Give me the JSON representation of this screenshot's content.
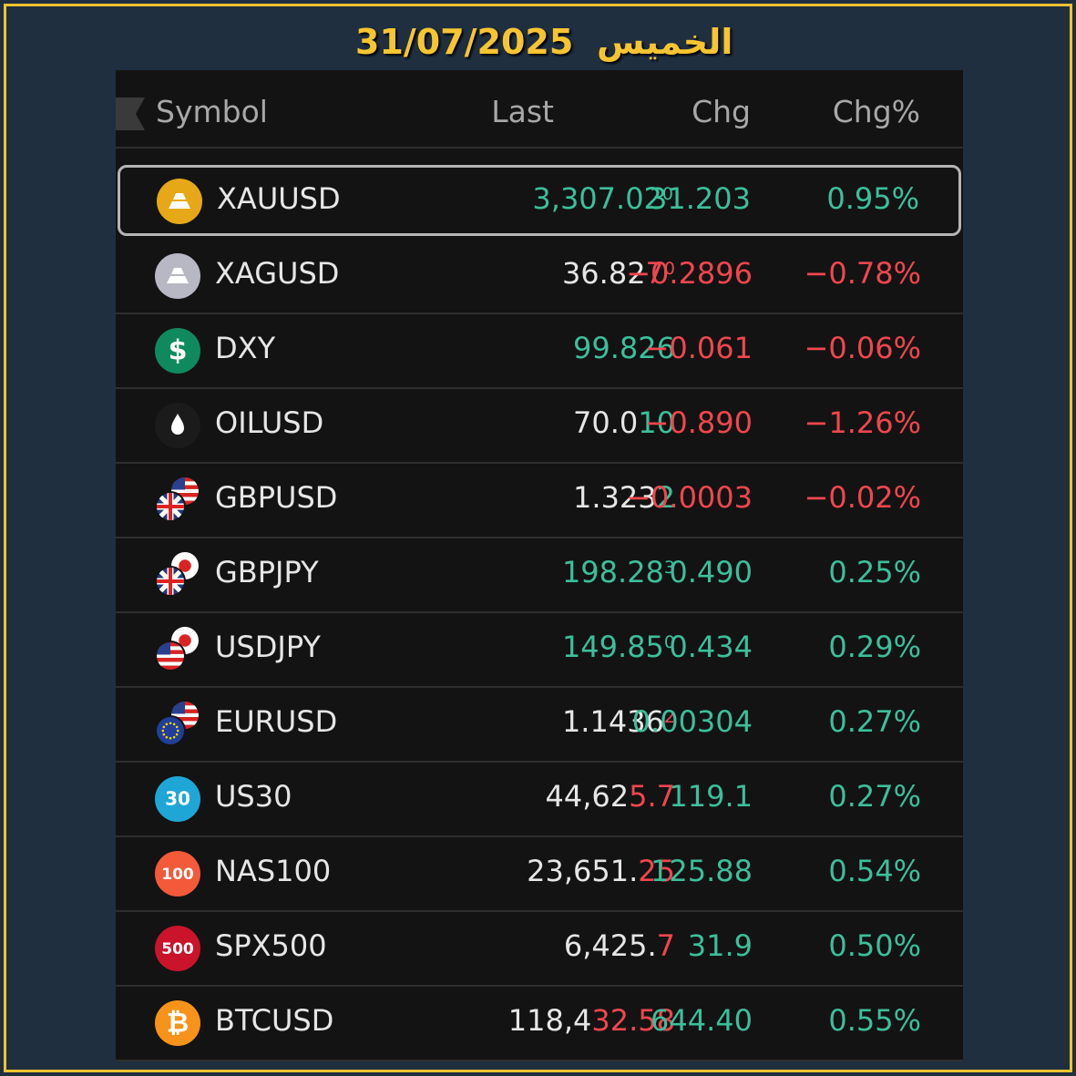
{
  "header": {
    "day": "الخميس",
    "date": "31/07/2025"
  },
  "table": {
    "columns": [
      "Symbol",
      "Last",
      "Chg",
      "Chg%"
    ],
    "rows": [
      {
        "symbol": "XAUUSD",
        "icon": "gold",
        "selected": true,
        "last": [
          {
            "text": "3,307.02",
            "color": "#3cbf9b"
          },
          {
            "text": "0",
            "color": "#3cbf9b",
            "sup": true
          }
        ],
        "chg": "31.203",
        "chg_pct": "0.95%",
        "color": "#3cbf9b"
      },
      {
        "symbol": "XAGUSD",
        "icon": "silver",
        "last": [
          {
            "text": "36.82",
            "color": "#e6e6e6"
          },
          {
            "text": "7",
            "color": "#f0464f"
          },
          {
            "text": "0",
            "color": "#f0464f",
            "sup": true
          }
        ],
        "chg": "−0.2896",
        "chg_pct": "−0.78%",
        "color": "#f0464f"
      },
      {
        "symbol": "DXY",
        "icon": "circle",
        "icon_color": "#0f8a5f",
        "icon_text": "$",
        "last": [
          {
            "text": "99.826",
            "color": "#3cbf9b"
          }
        ],
        "chg": "−0.061",
        "chg_pct": "−0.06%",
        "color": "#f0464f"
      },
      {
        "symbol": "OILUSD",
        "icon": "oil",
        "last": [
          {
            "text": "70.0",
            "color": "#e6e6e6"
          },
          {
            "text": "10",
            "color": "#3cbf9b"
          }
        ],
        "chg": "−0.890",
        "chg_pct": "−1.26%",
        "color": "#f0464f"
      },
      {
        "symbol": "GBPUSD",
        "icon": "pair",
        "flags": [
          "gb",
          "us"
        ],
        "last": [
          {
            "text": "1.323",
            "color": "#e6e6e6"
          },
          {
            "text": "2",
            "color": "#3cbf9b"
          }
        ],
        "chg": "−0.0003",
        "chg_pct": "−0.02%",
        "color": "#f0464f"
      },
      {
        "symbol": "GBPJPY",
        "icon": "pair",
        "flags": [
          "gb",
          "jp"
        ],
        "last": [
          {
            "text": "198.28",
            "color": "#3cbf9b"
          },
          {
            "text": "3",
            "color": "#3cbf9b",
            "sup": true
          }
        ],
        "chg": "0.490",
        "chg_pct": "0.25%",
        "color": "#3cbf9b"
      },
      {
        "symbol": "USDJPY",
        "icon": "pair",
        "flags": [
          "us",
          "jp"
        ],
        "last": [
          {
            "text": "149.85",
            "color": "#3cbf9b"
          },
          {
            "text": "0",
            "color": "#3cbf9b",
            "sup": true
          }
        ],
        "chg": "0.434",
        "chg_pct": "0.29%",
        "color": "#3cbf9b"
      },
      {
        "symbol": "EURUSD",
        "icon": "pair",
        "flags": [
          "eu",
          "us"
        ],
        "last": [
          {
            "text": "1.1436",
            "color": "#e6e6e6"
          },
          {
            "text": "2",
            "color": "#f0464f",
            "sup": true
          }
        ],
        "chg": "0.00304",
        "chg_pct": "0.27%",
        "color": "#3cbf9b"
      },
      {
        "symbol": "US30",
        "icon": "circle",
        "icon_color": "#1ea7d6",
        "icon_text": "30",
        "last": [
          {
            "text": "44,62",
            "color": "#e6e6e6"
          },
          {
            "text": "5.7",
            "color": "#f0464f"
          }
        ],
        "chg": "119.1",
        "chg_pct": "0.27%",
        "color": "#3cbf9b"
      },
      {
        "symbol": "NAS100",
        "icon": "circle",
        "icon_color": "#f35a3a",
        "icon_text": "100",
        "last": [
          {
            "text": "23,651.",
            "color": "#e6e6e6"
          },
          {
            "text": "25",
            "color": "#f0464f"
          }
        ],
        "chg": "125.88",
        "chg_pct": "0.54%",
        "color": "#3cbf9b"
      },
      {
        "symbol": "SPX500",
        "icon": "circle",
        "icon_color": "#c9142c",
        "icon_text": "500",
        "last": [
          {
            "text": "6,425.",
            "color": "#e6e6e6"
          },
          {
            "text": "7",
            "color": "#f0464f"
          }
        ],
        "chg": "31.9",
        "chg_pct": "0.50%",
        "color": "#3cbf9b"
      },
      {
        "symbol": "BTCUSD",
        "icon": "circle",
        "icon_color": "#f7931a",
        "icon_text": "₿",
        "last": [
          {
            "text": "118,4",
            "color": "#e6e6e6"
          },
          {
            "text": "32.58",
            "color": "#f0464f"
          }
        ],
        "chg": "644.40",
        "chg_pct": "0.55%",
        "color": "#3cbf9b"
      }
    ]
  }
}
